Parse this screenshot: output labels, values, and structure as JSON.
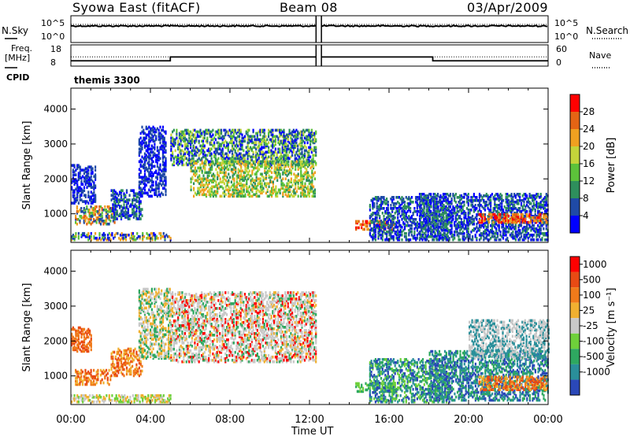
{
  "header": {
    "title": "Syowa East (fitACF)",
    "beam": "Beam 08",
    "date": "03/Apr/2009"
  },
  "chart_data": [
    {
      "type": "line",
      "panel": "noise",
      "left_label": "N.Sky",
      "right_label": "N.Search",
      "left_ticks": [
        "10^5",
        "10^0"
      ],
      "right_ticks": [
        "10^5",
        "10^0"
      ],
      "gap": [
        12.33,
        12.6
      ]
    },
    {
      "type": "line",
      "panel": "frequency",
      "left_label": "Freq.",
      "left_unit": "[MHz]",
      "right_label": "Nave",
      "left_ticks": [
        18,
        8
      ],
      "right_ticks": [
        60,
        0
      ],
      "freq_series": [
        {
          "x": [
            0,
            5.0
          ],
          "y": 10.5
        },
        {
          "x": [
            5.0,
            12.33
          ],
          "y": 12.3
        },
        {
          "x": [
            12.6,
            18.2
          ],
          "y": 12.3
        },
        {
          "x": [
            18.2,
            24.0
          ],
          "y": 10.5
        }
      ],
      "nave": 26
    },
    {
      "type": "table",
      "panel": "cpid",
      "label": "CPID",
      "value": "themis 3300"
    },
    {
      "type": "heatmap",
      "panel": "power",
      "ylabel": "Slant Range [km]",
      "ylim": [
        180,
        4600
      ],
      "yticks": [
        1000,
        2000,
        3000,
        4000
      ],
      "xlim": [
        0,
        24
      ],
      "colorbar_label": "Power [dB]",
      "colorbar_ticks": [
        "4",
        "8",
        "12",
        "16",
        "20",
        "24",
        "28"
      ],
      "colors": [
        "#0000ff",
        "#1f4aa6",
        "#2e8f5c",
        "#5cc23a",
        "#c4d43a",
        "#f0a020",
        "#e46414",
        "#ff0000"
      ],
      "regions": [
        {
          "t": [
            0.0,
            1.2
          ],
          "r": [
            1300,
            2400
          ],
          "c": [
            0,
            1
          ]
        },
        {
          "t": [
            0.2,
            2.2
          ],
          "r": [
            700,
            1200
          ],
          "c": [
            1,
            3,
            5,
            6
          ]
        },
        {
          "t": [
            2.0,
            3.6
          ],
          "r": [
            850,
            1700
          ],
          "c": [
            0,
            1,
            2
          ]
        },
        {
          "t": [
            0.0,
            5.0
          ],
          "r": [
            250,
            450
          ],
          "c": [
            0,
            1,
            3,
            5
          ]
        },
        {
          "t": [
            3.4,
            4.8
          ],
          "r": [
            1500,
            3500
          ],
          "c": [
            0,
            1
          ]
        },
        {
          "t": [
            5.0,
            12.3
          ],
          "r": [
            2400,
            3400
          ],
          "c": [
            0,
            1,
            2,
            3,
            4
          ]
        },
        {
          "t": [
            6.0,
            12.3
          ],
          "r": [
            1500,
            2500
          ],
          "c": [
            2,
            3,
            4,
            5
          ]
        },
        {
          "t": [
            14.3,
            16.2
          ],
          "r": [
            550,
            800
          ],
          "c": [
            5,
            6,
            7
          ]
        },
        {
          "t": [
            15.0,
            19.0
          ],
          "r": [
            250,
            1500
          ],
          "c": [
            0,
            1,
            2
          ]
        },
        {
          "t": [
            17.5,
            24.0
          ],
          "r": [
            250,
            1600
          ],
          "c": [
            0,
            1,
            2
          ]
        },
        {
          "t": [
            20.5,
            24.0
          ],
          "r": [
            750,
            1000
          ],
          "c": [
            5,
            6,
            7
          ]
        }
      ]
    },
    {
      "type": "heatmap",
      "panel": "velocity",
      "ylabel": "Slant Range [km]",
      "ylim": [
        180,
        4600
      ],
      "yticks": [
        1000,
        2000,
        3000,
        4000
      ],
      "xlim": [
        0,
        24
      ],
      "xticks": [
        "00:00",
        "04:00",
        "08:00",
        "12:00",
        "16:00",
        "20:00",
        "00:00"
      ],
      "xlabel": "Time UT",
      "colorbar_label": "Velocity [m s⁻¹]",
      "colorbar_ticks": [
        "1000",
        "500",
        "100",
        "25",
        "-25",
        "-100",
        "-500",
        "-1000"
      ],
      "colors": [
        "#2a48b8",
        "#2a8f9a",
        "#2ea860",
        "#6ed03a",
        "#c8c8c8",
        "#f0b030",
        "#f07a1a",
        "#e84a14",
        "#ff0000"
      ],
      "regions": [
        {
          "t": [
            0.0,
            1.0
          ],
          "r": [
            1700,
            2400
          ],
          "c": [
            6,
            7
          ]
        },
        {
          "t": [
            0.2,
            2.0
          ],
          "r": [
            750,
            1200
          ],
          "c": [
            5,
            6,
            7
          ]
        },
        {
          "t": [
            2.0,
            3.6
          ],
          "r": [
            1000,
            1800
          ],
          "c": [
            5,
            6,
            7
          ]
        },
        {
          "t": [
            0.0,
            5.0
          ],
          "r": [
            250,
            450
          ],
          "c": [
            3,
            4,
            5
          ]
        },
        {
          "t": [
            3.4,
            5.0
          ],
          "r": [
            1500,
            3500
          ],
          "c": [
            4,
            2,
            5
          ]
        },
        {
          "t": [
            5.0,
            12.3
          ],
          "r": [
            1400,
            3400
          ],
          "c": [
            4,
            4,
            4,
            5,
            2,
            8
          ]
        },
        {
          "t": [
            14.3,
            16.3
          ],
          "r": [
            550,
            800
          ],
          "c": [
            2,
            3
          ]
        },
        {
          "t": [
            15.0,
            19.0
          ],
          "r": [
            250,
            1500
          ],
          "c": [
            0,
            1,
            2,
            3
          ]
        },
        {
          "t": [
            18.0,
            24.0
          ],
          "r": [
            300,
            1700
          ],
          "c": [
            0,
            1,
            2
          ]
        },
        {
          "t": [
            20.5,
            24.0
          ],
          "r": [
            600,
            1000
          ],
          "c": [
            5,
            6,
            7
          ]
        },
        {
          "t": [
            20.0,
            24.0
          ],
          "r": [
            1500,
            2600
          ],
          "c": [
            4,
            1
          ]
        }
      ]
    }
  ]
}
